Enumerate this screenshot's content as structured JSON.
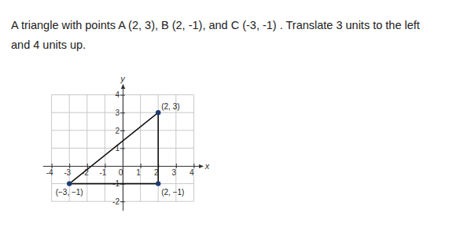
{
  "chart_data": {
    "type": "scatter",
    "title": "A triangle with points A (2, 3), B (2, -1), and C (-3, -1) . Translate 3 units to the left and 4 units up.",
    "x_label": "x",
    "y_label": "y",
    "x": [
      2,
      2,
      -3
    ],
    "values": [
      3,
      -1,
      -1
    ],
    "value_labels": [
      "(2, 3)",
      "(2, −1)",
      "(−3, −1)"
    ],
    "data_labels": true,
    "color": "#1f3b73",
    "marker": "circle",
    "line_style": "solid",
    "xlim": [
      -4.5,
      4.5
    ],
    "ylim": [
      -2.5,
      4.6
    ],
    "xticks": [
      -4,
      -3,
      -2,
      -1,
      0,
      1,
      2,
      3,
      4
    ],
    "yticks": [
      -2,
      -1,
      1,
      2,
      3,
      4
    ],
    "grid": true
  }
}
